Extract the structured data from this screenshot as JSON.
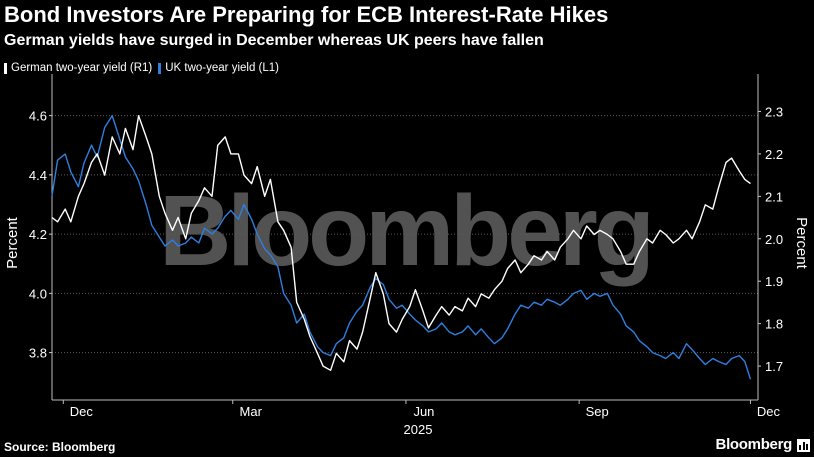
{
  "header": {
    "title": "Bond Investors Are Preparing for ECB Interest-Rate Hikes",
    "subtitle": "German yields have surged in December whereas UK peers have fallen"
  },
  "footer": {
    "source": "Source: Bloomberg",
    "brand": "Bloomberg"
  },
  "watermark": "Bloomberg",
  "colors": {
    "german": "#ffffff",
    "uk": "#2f7fe0",
    "grid": "#5a5a5a",
    "background": "#000000"
  },
  "chart_data": {
    "type": "line",
    "title": "Bond Investors Are Preparing for ECB Interest-Rate Hikes",
    "subtitle": "German yields have surged in December whereas UK peers have fallen",
    "x_ticks": [
      "Dec",
      "Mar",
      "Jun",
      "Sep",
      "Dec"
    ],
    "x_tick_dates": [
      "2024-12-01",
      "2025-03-01",
      "2025-06-01",
      "2025-09-01",
      "2025-12-01"
    ],
    "x_year_label": "2025",
    "x_range": [
      "2024-11-25",
      "2025-12-05"
    ],
    "y_left": {
      "label": "Percent",
      "range": [
        3.64,
        4.7
      ],
      "ticks": [
        "3.8",
        "4.0",
        "4.2",
        "4.4",
        "4.6"
      ]
    },
    "y_right": {
      "label": "Percent",
      "range": [
        1.62,
        2.36
      ],
      "ticks": [
        "1.7",
        "1.8",
        "1.9",
        "2.0",
        "2.1",
        "2.2",
        "2.3"
      ]
    },
    "grid": "horizontal dotted",
    "legend_position": "top-left",
    "series": [
      {
        "name": "German two-year yield (R1)",
        "axis": "right",
        "points": [
          [
            "2024-11-25",
            2.05
          ],
          [
            "2024-11-28",
            2.04
          ],
          [
            "2024-12-02",
            2.07
          ],
          [
            "2024-12-05",
            2.04
          ],
          [
            "2024-12-09",
            2.1
          ],
          [
            "2024-12-12",
            2.13
          ],
          [
            "2024-12-16",
            2.18
          ],
          [
            "2024-12-19",
            2.2
          ],
          [
            "2024-12-23",
            2.15
          ],
          [
            "2024-12-27",
            2.24
          ],
          [
            "2024-12-31",
            2.2
          ],
          [
            "2025-01-03",
            2.26
          ],
          [
            "2025-01-07",
            2.21
          ],
          [
            "2025-01-10",
            2.29
          ],
          [
            "2025-01-14",
            2.24
          ],
          [
            "2025-01-17",
            2.2
          ],
          [
            "2025-01-21",
            2.1
          ],
          [
            "2025-01-24",
            2.06
          ],
          [
            "2025-01-28",
            2.02
          ],
          [
            "2025-01-31",
            2.05
          ],
          [
            "2025-02-04",
            2.0
          ],
          [
            "2025-02-07",
            2.06
          ],
          [
            "2025-02-11",
            2.09
          ],
          [
            "2025-02-14",
            2.12
          ],
          [
            "2025-02-18",
            2.1
          ],
          [
            "2025-02-21",
            2.22
          ],
          [
            "2025-02-25",
            2.24
          ],
          [
            "2025-02-28",
            2.2
          ],
          [
            "2025-03-04",
            2.2
          ],
          [
            "2025-03-07",
            2.15
          ],
          [
            "2025-03-11",
            2.13
          ],
          [
            "2025-03-14",
            2.17
          ],
          [
            "2025-03-18",
            2.1
          ],
          [
            "2025-03-21",
            2.14
          ],
          [
            "2025-03-25",
            2.04
          ],
          [
            "2025-03-28",
            2.02
          ],
          [
            "2025-04-01",
            1.98
          ],
          [
            "2025-04-04",
            1.85
          ],
          [
            "2025-04-08",
            1.81
          ],
          [
            "2025-04-11",
            1.77
          ],
          [
            "2025-04-15",
            1.73
          ],
          [
            "2025-04-18",
            1.7
          ],
          [
            "2025-04-22",
            1.69
          ],
          [
            "2025-04-25",
            1.73
          ],
          [
            "2025-04-29",
            1.71
          ],
          [
            "2025-05-02",
            1.76
          ],
          [
            "2025-05-06",
            1.74
          ],
          [
            "2025-05-09",
            1.78
          ],
          [
            "2025-05-13",
            1.86
          ],
          [
            "2025-05-16",
            1.92
          ],
          [
            "2025-05-20",
            1.87
          ],
          [
            "2025-05-23",
            1.8
          ],
          [
            "2025-05-27",
            1.78
          ],
          [
            "2025-05-30",
            1.81
          ],
          [
            "2025-06-03",
            1.84
          ],
          [
            "2025-06-06",
            1.88
          ],
          [
            "2025-06-10",
            1.83
          ],
          [
            "2025-06-13",
            1.79
          ],
          [
            "2025-06-17",
            1.82
          ],
          [
            "2025-06-20",
            1.84
          ],
          [
            "2025-06-24",
            1.82
          ],
          [
            "2025-06-27",
            1.84
          ],
          [
            "2025-07-01",
            1.83
          ],
          [
            "2025-07-04",
            1.86
          ],
          [
            "2025-07-08",
            1.84
          ],
          [
            "2025-07-11",
            1.87
          ],
          [
            "2025-07-15",
            1.86
          ],
          [
            "2025-07-18",
            1.88
          ],
          [
            "2025-07-22",
            1.9
          ],
          [
            "2025-07-25",
            1.93
          ],
          [
            "2025-07-29",
            1.95
          ],
          [
            "2025-08-01",
            1.92
          ],
          [
            "2025-08-05",
            1.94
          ],
          [
            "2025-08-08",
            1.96
          ],
          [
            "2025-08-12",
            1.95
          ],
          [
            "2025-08-15",
            1.97
          ],
          [
            "2025-08-19",
            1.95
          ],
          [
            "2025-08-22",
            1.98
          ],
          [
            "2025-08-26",
            2.0
          ],
          [
            "2025-08-29",
            2.02
          ],
          [
            "2025-09-02",
            2.0
          ],
          [
            "2025-09-05",
            2.03
          ],
          [
            "2025-09-09",
            2.01
          ],
          [
            "2025-09-12",
            2.02
          ],
          [
            "2025-09-16",
            2.01
          ],
          [
            "2025-09-19",
            2.0
          ],
          [
            "2025-09-23",
            1.97
          ],
          [
            "2025-09-26",
            1.94
          ],
          [
            "2025-09-30",
            1.94
          ],
          [
            "2025-10-03",
            1.97
          ],
          [
            "2025-10-07",
            2.0
          ],
          [
            "2025-10-10",
            1.99
          ],
          [
            "2025-10-14",
            2.02
          ],
          [
            "2025-10-17",
            2.01
          ],
          [
            "2025-10-21",
            1.99
          ],
          [
            "2025-10-24",
            2.0
          ],
          [
            "2025-10-28",
            2.02
          ],
          [
            "2025-10-31",
            2.0
          ],
          [
            "2025-11-04",
            2.04
          ],
          [
            "2025-11-07",
            2.08
          ],
          [
            "2025-11-11",
            2.07
          ],
          [
            "2025-11-14",
            2.12
          ],
          [
            "2025-11-18",
            2.18
          ],
          [
            "2025-11-21",
            2.19
          ],
          [
            "2025-11-25",
            2.16
          ],
          [
            "2025-11-28",
            2.14
          ],
          [
            "2025-12-01",
            2.13
          ]
        ]
      },
      {
        "name": "UK two-year yield (L1)",
        "axis": "left",
        "points": [
          [
            "2024-11-25",
            4.33
          ],
          [
            "2024-11-28",
            4.45
          ],
          [
            "2024-12-02",
            4.47
          ],
          [
            "2024-12-05",
            4.41
          ],
          [
            "2024-12-09",
            4.36
          ],
          [
            "2024-12-12",
            4.44
          ],
          [
            "2024-12-16",
            4.5
          ],
          [
            "2024-12-19",
            4.46
          ],
          [
            "2024-12-23",
            4.56
          ],
          [
            "2024-12-27",
            4.6
          ],
          [
            "2024-12-31",
            4.52
          ],
          [
            "2025-01-03",
            4.46
          ],
          [
            "2025-01-07",
            4.42
          ],
          [
            "2025-01-10",
            4.38
          ],
          [
            "2025-01-14",
            4.3
          ],
          [
            "2025-01-17",
            4.23
          ],
          [
            "2025-01-21",
            4.19
          ],
          [
            "2025-01-24",
            4.16
          ],
          [
            "2025-01-28",
            4.18
          ],
          [
            "2025-01-31",
            4.16
          ],
          [
            "2025-02-04",
            4.17
          ],
          [
            "2025-02-07",
            4.19
          ],
          [
            "2025-02-11",
            4.17
          ],
          [
            "2025-02-14",
            4.22
          ],
          [
            "2025-02-18",
            4.2
          ],
          [
            "2025-02-21",
            4.22
          ],
          [
            "2025-02-25",
            4.26
          ],
          [
            "2025-02-28",
            4.28
          ],
          [
            "2025-03-04",
            4.25
          ],
          [
            "2025-03-07",
            4.3
          ],
          [
            "2025-03-11",
            4.25
          ],
          [
            "2025-03-14",
            4.2
          ],
          [
            "2025-03-18",
            4.15
          ],
          [
            "2025-03-21",
            4.13
          ],
          [
            "2025-03-25",
            4.09
          ],
          [
            "2025-03-28",
            4.0
          ],
          [
            "2025-04-01",
            3.96
          ],
          [
            "2025-04-04",
            3.9
          ],
          [
            "2025-04-08",
            3.93
          ],
          [
            "2025-04-11",
            3.87
          ],
          [
            "2025-04-15",
            3.82
          ],
          [
            "2025-04-18",
            3.8
          ],
          [
            "2025-04-22",
            3.79
          ],
          [
            "2025-04-25",
            3.83
          ],
          [
            "2025-04-29",
            3.85
          ],
          [
            "2025-05-02",
            3.9
          ],
          [
            "2025-05-06",
            3.94
          ],
          [
            "2025-05-09",
            3.96
          ],
          [
            "2025-05-13",
            4.02
          ],
          [
            "2025-05-16",
            4.05
          ],
          [
            "2025-05-20",
            4.03
          ],
          [
            "2025-05-23",
            3.98
          ],
          [
            "2025-05-27",
            3.95
          ],
          [
            "2025-05-30",
            3.96
          ],
          [
            "2025-06-03",
            3.93
          ],
          [
            "2025-06-06",
            3.91
          ],
          [
            "2025-06-10",
            3.89
          ],
          [
            "2025-06-13",
            3.87
          ],
          [
            "2025-06-17",
            3.88
          ],
          [
            "2025-06-20",
            3.9
          ],
          [
            "2025-06-24",
            3.87
          ],
          [
            "2025-06-27",
            3.86
          ],
          [
            "2025-07-01",
            3.87
          ],
          [
            "2025-07-04",
            3.89
          ],
          [
            "2025-07-08",
            3.86
          ],
          [
            "2025-07-11",
            3.88
          ],
          [
            "2025-07-15",
            3.85
          ],
          [
            "2025-07-18",
            3.83
          ],
          [
            "2025-07-22",
            3.85
          ],
          [
            "2025-07-25",
            3.88
          ],
          [
            "2025-07-29",
            3.93
          ],
          [
            "2025-08-01",
            3.96
          ],
          [
            "2025-08-05",
            3.95
          ],
          [
            "2025-08-08",
            3.97
          ],
          [
            "2025-08-12",
            3.96
          ],
          [
            "2025-08-15",
            3.98
          ],
          [
            "2025-08-19",
            3.97
          ],
          [
            "2025-08-22",
            3.96
          ],
          [
            "2025-08-26",
            3.98
          ],
          [
            "2025-08-29",
            4.0
          ],
          [
            "2025-09-02",
            4.01
          ],
          [
            "2025-09-05",
            3.98
          ],
          [
            "2025-09-09",
            4.0
          ],
          [
            "2025-09-12",
            3.99
          ],
          [
            "2025-09-16",
            4.0
          ],
          [
            "2025-09-19",
            3.96
          ],
          [
            "2025-09-23",
            3.93
          ],
          [
            "2025-09-26",
            3.89
          ],
          [
            "2025-09-30",
            3.87
          ],
          [
            "2025-10-03",
            3.84
          ],
          [
            "2025-10-07",
            3.82
          ],
          [
            "2025-10-10",
            3.8
          ],
          [
            "2025-10-14",
            3.79
          ],
          [
            "2025-10-17",
            3.78
          ],
          [
            "2025-10-21",
            3.8
          ],
          [
            "2025-10-24",
            3.78
          ],
          [
            "2025-10-28",
            3.83
          ],
          [
            "2025-10-31",
            3.81
          ],
          [
            "2025-11-04",
            3.78
          ],
          [
            "2025-11-07",
            3.76
          ],
          [
            "2025-11-11",
            3.78
          ],
          [
            "2025-11-14",
            3.77
          ],
          [
            "2025-11-18",
            3.76
          ],
          [
            "2025-11-21",
            3.78
          ],
          [
            "2025-11-25",
            3.79
          ],
          [
            "2025-11-28",
            3.77
          ],
          [
            "2025-12-01",
            3.71
          ]
        ]
      }
    ]
  }
}
